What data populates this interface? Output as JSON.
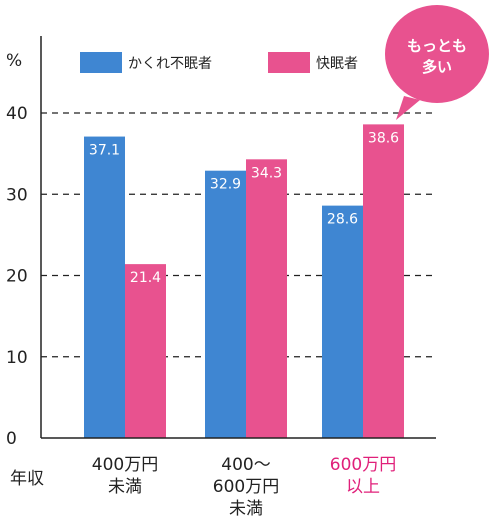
{
  "chart_data": {
    "type": "bar",
    "categories": [
      [
        "400万円",
        "未満"
      ],
      [
        "400〜",
        "600万円",
        "未満"
      ],
      [
        "600万円",
        "以上"
      ]
    ],
    "series": [
      {
        "name": "かくれ不眠者",
        "color": "#3f86d2",
        "values": [
          37.1,
          32.9,
          28.6
        ]
      },
      {
        "name": "快眠者",
        "color": "#e8528f",
        "values": [
          21.4,
          34.3,
          38.6
        ]
      }
    ],
    "ylabel": "%",
    "xlabel": "年収",
    "ylim": [
      0,
      40
    ],
    "yticks": [
      0,
      10,
      20,
      30,
      40
    ],
    "grid": true,
    "legend_position": "top",
    "highlight_category_index": 2,
    "highlight_color": "#e0207a",
    "annotation": {
      "lines": [
        "もっとも",
        "多い"
      ],
      "color": "#e8528f"
    }
  }
}
